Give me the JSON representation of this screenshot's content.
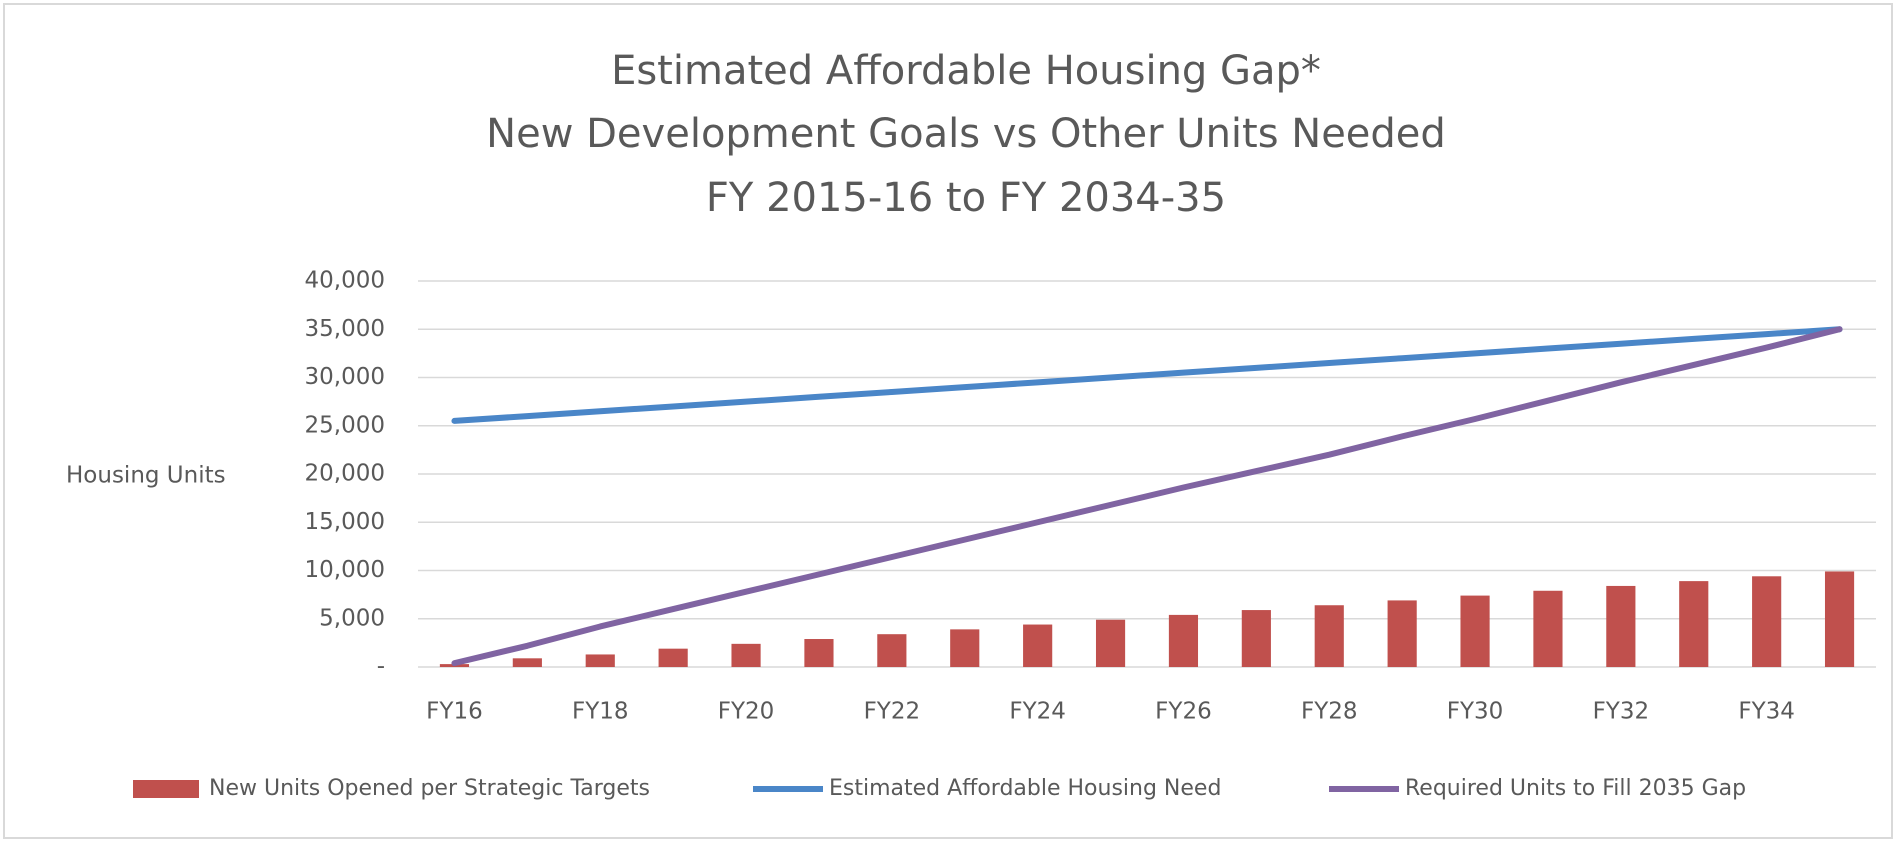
{
  "chart_data": {
    "type": "bar_line",
    "title": [
      "Estimated Affordable Housing Gap*",
      "New Development Goals vs Other Units Needed",
      "FY 2015-16 to FY 2034-35"
    ],
    "ylabel": "Housing Units",
    "categories": [
      "FY16",
      null,
      "FY18",
      null,
      "FY20",
      null,
      "FY22",
      null,
      "FY24",
      null,
      "FY26",
      null,
      "FY28",
      null,
      "FY30",
      null,
      "FY32",
      null,
      "FY34",
      null
    ],
    "series": [
      {
        "name": "New Units Opened per Strategic Targets",
        "kind": "bar",
        "color": "#c0504d",
        "values": [
          300,
          900,
          1300,
          1900,
          2400,
          2900,
          3400,
          3900,
          4400,
          4900,
          5400,
          5900,
          6400,
          6900,
          7400,
          7900,
          8400,
          8900,
          9400,
          9900
        ]
      },
      {
        "name": "Estimated Affordable Housing Need",
        "kind": "line",
        "color": "#4a86c8",
        "values": [
          25500,
          26000,
          26500,
          27000,
          27500,
          28000,
          28500,
          29000,
          29500,
          30000,
          30500,
          31000,
          31500,
          32000,
          32500,
          33000,
          33500,
          34000,
          34500,
          35000
        ]
      },
      {
        "name": "Required Units to Fill 2035 Gap",
        "kind": "line",
        "color": "#8064a2",
        "values": [
          400,
          2200,
          4200,
          6000,
          7800,
          9600,
          11400,
          13200,
          15000,
          16800,
          18600,
          20300,
          22000,
          23900,
          25700,
          27600,
          29500,
          31300,
          33100,
          35000
        ]
      }
    ],
    "ylim": [
      0,
      40000
    ],
    "yticks": [
      {
        "value": 0,
        "label": "-"
      },
      {
        "value": 5000,
        "label": "5,000"
      },
      {
        "value": 10000,
        "label": "10,000"
      },
      {
        "value": 15000,
        "label": "15,000"
      },
      {
        "value": 20000,
        "label": "20,000"
      },
      {
        "value": 25000,
        "label": "25,000"
      },
      {
        "value": 30000,
        "label": "30,000"
      },
      {
        "value": 35000,
        "label": "35,000"
      },
      {
        "value": 40000,
        "label": "40,000"
      }
    ],
    "grid": true,
    "legend": "bottom"
  }
}
